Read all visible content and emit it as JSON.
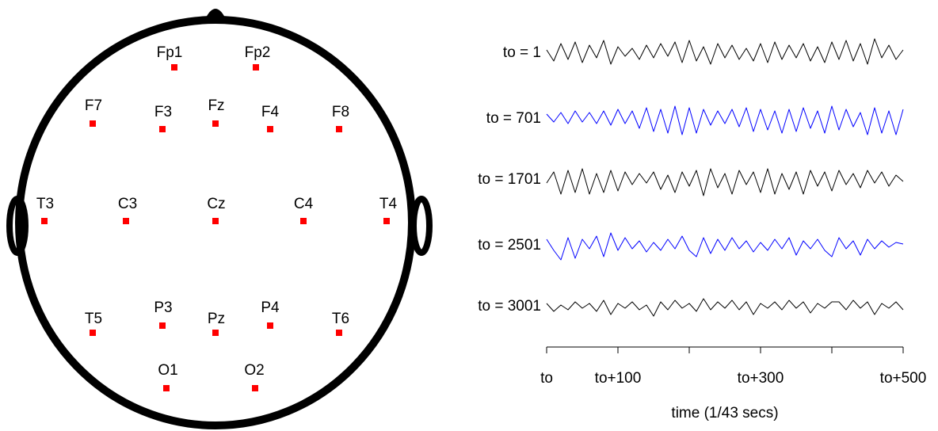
{
  "head": {
    "electrodes": [
      "Fp1",
      "Fp2",
      "F7",
      "F3",
      "Fz",
      "F4",
      "F8",
      "T3",
      "C3",
      "Cz",
      "C4",
      "T4",
      "T5",
      "P3",
      "Pz",
      "P4",
      "T6",
      "O1",
      "O2"
    ]
  },
  "chart_data": {
    "type": "line",
    "xlabel": "time  (1/43 secs)",
    "x": [
      0,
      10,
      20,
      30,
      40,
      50,
      60,
      70,
      80,
      90,
      100,
      110,
      120,
      130,
      140,
      150,
      160,
      170,
      180,
      190,
      200,
      210,
      220,
      230,
      240,
      250,
      260,
      270,
      280,
      290,
      300,
      310,
      320,
      330,
      340,
      350,
      360,
      370,
      380,
      390,
      400,
      410,
      420,
      430,
      440,
      450,
      460,
      470,
      480,
      490,
      500
    ],
    "xlim": [
      0,
      500
    ],
    "xticks": [
      {
        "value": 0,
        "label": "to"
      },
      {
        "value": 100,
        "label": "to+100"
      },
      {
        "value": 300,
        "label": "to+300"
      },
      {
        "value": 500,
        "label": "to+500"
      }
    ],
    "minor_xticks": [
      200,
      400
    ],
    "ylim": [
      -10,
      10
    ],
    "series": [
      {
        "name": "to = 1",
        "color": "#000000",
        "values": [
          2,
          -5,
          6,
          -4,
          7,
          -6,
          5,
          -3,
          8,
          -7,
          4,
          -2,
          3,
          -4,
          5,
          -3,
          6,
          -2,
          7,
          -6,
          8,
          -5,
          4,
          -7,
          6,
          -3,
          5,
          -4,
          3,
          -5,
          6,
          -6,
          7,
          -4,
          5,
          -3,
          6,
          -5,
          4,
          -6,
          7,
          -4,
          8,
          -5,
          6,
          -7,
          9,
          -3,
          5,
          -4,
          2
        ]
      },
      {
        "name": "to = 701",
        "color": "#0000ff",
        "values": [
          3,
          -2,
          4,
          -3,
          5,
          -2,
          4,
          -3,
          5,
          -4,
          6,
          -3,
          5,
          -6,
          7,
          -8,
          6,
          -9,
          8,
          -10,
          7,
          -9,
          6,
          -4,
          5,
          -3,
          6,
          -5,
          7,
          -8,
          6,
          -7,
          5,
          -9,
          6,
          -8,
          7,
          -6,
          5,
          -9,
          8,
          -7,
          6,
          -5,
          4,
          -10,
          7,
          -9,
          5,
          -10,
          6
        ]
      },
      {
        "name": "to = 1701",
        "color": "#000000",
        "values": [
          -2,
          5,
          -9,
          6,
          -8,
          7,
          -9,
          4,
          -8,
          6,
          -7,
          5,
          -3,
          4,
          -2,
          5,
          -6,
          3,
          -8,
          5,
          -4,
          6,
          -10,
          7,
          -5,
          4,
          -9,
          6,
          -3,
          5,
          -8,
          7,
          -9,
          4,
          -6,
          5,
          -9,
          6,
          -4,
          5,
          -7,
          6,
          -3,
          4,
          -5,
          6,
          -2,
          5,
          -4,
          3,
          -1
        ]
      },
      {
        "name": "to = 2501",
        "color": "#0000ff",
        "values": [
          4,
          -3,
          -9,
          5,
          -8,
          4,
          -2,
          6,
          -7,
          8,
          -3,
          5,
          -2,
          3,
          -4,
          2,
          -3,
          4,
          -2,
          6,
          -3,
          -7,
          5,
          -5,
          4,
          -3,
          5,
          -2,
          3,
          -4,
          2,
          -3,
          4,
          -2,
          5,
          -6,
          3,
          -2,
          4,
          -3,
          -7,
          5,
          -2,
          3,
          -6,
          4,
          -2,
          3,
          -1,
          2,
          1
        ]
      },
      {
        "name": "to = 3001",
        "color": "#000000",
        "values": [
          2,
          -3,
          1,
          -2,
          3,
          -1,
          2,
          -3,
          4,
          -5,
          2,
          -1,
          3,
          -2,
          1,
          -6,
          3,
          -2,
          4,
          -1,
          2,
          -3,
          5,
          -2,
          3,
          -1,
          4,
          -2,
          3,
          -5,
          2,
          -1,
          3,
          -2,
          4,
          -1,
          3,
          -4,
          2,
          -1,
          3,
          3,
          -2,
          4,
          -1,
          3,
          -5,
          2,
          -1,
          3,
          -2
        ]
      }
    ]
  }
}
